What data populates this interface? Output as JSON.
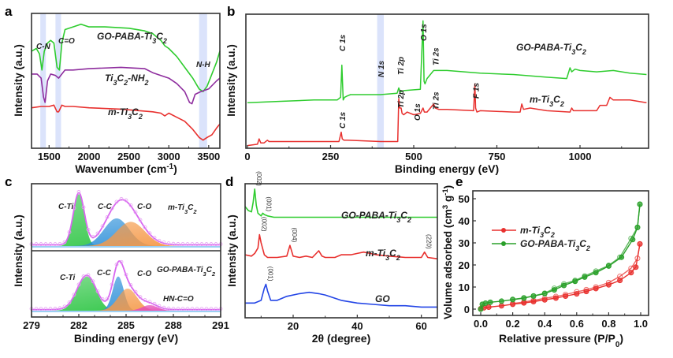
{
  "figure": {
    "title": ""
  },
  "chart_data": [
    {
      "panel": "a",
      "type": "line",
      "title": "",
      "xlabel": "Wavenumber (cm-1)",
      "ylabel": "Intensity (a.u.)",
      "xlim": [
        1280,
        3640
      ],
      "xticks": [
        1500,
        2000,
        2500,
        3000,
        3500
      ],
      "highlight_bands": [
        {
          "label": "C-N",
          "range": [
            1390,
            1460
          ]
        },
        {
          "label": "C=O",
          "range": [
            1580,
            1650
          ]
        },
        {
          "label": "N-H",
          "range": [
            3380,
            3480
          ]
        }
      ],
      "series": [
        {
          "name": "GO-PABA-Ti3C2",
          "color": "#2ecc2e",
          "x": [
            1280,
            1340,
            1380,
            1410,
            1440,
            1480,
            1520,
            1560,
            1600,
            1630,
            1660,
            1700,
            1800,
            1900,
            2000,
            2200,
            2500,
            2700,
            2800,
            2900,
            2950,
            3000,
            3100,
            3200,
            3300,
            3380,
            3430,
            3480,
            3540,
            3600,
            3640
          ],
          "y": [
            0.72,
            0.74,
            0.7,
            0.58,
            0.72,
            0.78,
            0.8,
            0.78,
            0.6,
            0.58,
            0.78,
            0.88,
            0.9,
            0.92,
            0.9,
            0.9,
            0.89,
            0.87,
            0.85,
            0.8,
            0.76,
            0.74,
            0.68,
            0.6,
            0.52,
            0.44,
            0.42,
            0.46,
            0.55,
            0.64,
            0.72
          ]
        },
        {
          "name": "Ti3C2-NH2",
          "color": "#8e2d9e",
          "x": [
            1280,
            1350,
            1400,
            1430,
            1450,
            1480,
            1520,
            1580,
            1620,
            1660,
            1700,
            1800,
            2000,
            2400,
            2700,
            2800,
            2900,
            3000,
            3100,
            3200,
            3260,
            3290,
            3330,
            3400,
            3500,
            3600,
            3640
          ],
          "y": [
            0.55,
            0.55,
            0.52,
            0.38,
            0.34,
            0.5,
            0.55,
            0.54,
            0.52,
            0.55,
            0.58,
            0.58,
            0.59,
            0.6,
            0.59,
            0.56,
            0.54,
            0.52,
            0.48,
            0.42,
            0.34,
            0.33,
            0.4,
            0.42,
            0.44,
            0.5,
            0.52
          ]
        },
        {
          "name": "m-Ti3C2",
          "color": "#e8302e",
          "x": [
            1280,
            1400,
            1500,
            1560,
            1600,
            1620,
            1660,
            1700,
            1800,
            2000,
            2400,
            2800,
            2900,
            2950,
            3000,
            3100,
            3200,
            3300,
            3380,
            3430,
            3480,
            3540,
            3600,
            3640
          ],
          "y": [
            0.3,
            0.31,
            0.31,
            0.32,
            0.27,
            0.27,
            0.32,
            0.31,
            0.31,
            0.3,
            0.29,
            0.27,
            0.26,
            0.24,
            0.26,
            0.23,
            0.2,
            0.14,
            0.08,
            0.06,
            0.08,
            0.1,
            0.15,
            0.18
          ]
        }
      ],
      "annotations": [
        "C-N",
        "C=O",
        "N-H",
        "GO-PABA-Ti3C2",
        "Ti3C2-NH2",
        "m-Ti3C2"
      ]
    },
    {
      "panel": "b",
      "type": "line",
      "title": "",
      "xlabel": "Binding energy (eV)",
      "ylabel": "Intensity (a.u.)",
      "xlim": [
        0,
        1200
      ],
      "xticks": [
        0,
        250,
        500,
        750,
        1000
      ],
      "highlight_bands": [
        {
          "label": "N 1s",
          "range": [
            390,
            410
          ]
        }
      ],
      "series": [
        {
          "name": "GO-PABA-Ti3C2",
          "color": "#2ecc2e",
          "x": [
            0,
            100,
            200,
            270,
            280,
            284,
            288,
            292,
            300,
            310,
            350,
            400,
            450,
            455,
            460,
            470,
            520,
            528,
            531,
            534,
            540,
            560,
            600,
            700,
            800,
            900,
            960,
            970,
            975,
            985,
            1000,
            1050,
            1100,
            1150,
            1200
          ],
          "y": [
            0.34,
            0.35,
            0.36,
            0.36,
            0.38,
            0.62,
            0.36,
            0.38,
            0.39,
            0.4,
            0.4,
            0.4,
            0.41,
            0.45,
            0.42,
            0.43,
            0.44,
            0.95,
            0.5,
            0.48,
            0.52,
            0.58,
            0.58,
            0.56,
            0.55,
            0.53,
            0.52,
            0.6,
            0.57,
            0.59,
            0.58,
            0.57,
            0.58,
            0.56,
            0.55
          ]
        },
        {
          "name": "m-Ti3C2",
          "color": "#e8302e",
          "x": [
            0,
            30,
            35,
            40,
            50,
            60,
            65,
            70,
            100,
            200,
            275,
            282,
            285,
            290,
            300,
            400,
            452,
            455,
            458,
            462,
            465,
            470,
            480,
            500,
            520,
            528,
            532,
            540,
            560,
            565,
            575,
            600,
            680,
            684,
            686,
            690,
            700,
            800,
            820,
            825,
            830,
            850,
            900,
            970,
            975,
            980,
            1050,
            1060,
            1080,
            1090,
            1100,
            1150,
            1200
          ],
          "y": [
            0.02,
            0.03,
            0.07,
            0.04,
            0.04,
            0.06,
            0.05,
            0.05,
            0.05,
            0.05,
            0.05,
            0.12,
            0.07,
            0.06,
            0.06,
            0.05,
            0.05,
            0.37,
            0.3,
            0.3,
            0.26,
            0.25,
            0.27,
            0.25,
            0.26,
            0.3,
            0.27,
            0.27,
            0.33,
            0.3,
            0.29,
            0.29,
            0.28,
            0.48,
            0.3,
            0.27,
            0.28,
            0.27,
            0.27,
            0.33,
            0.29,
            0.3,
            0.28,
            0.27,
            0.3,
            0.28,
            0.28,
            0.32,
            0.32,
            0.38,
            0.36,
            0.36,
            0.34
          ]
        }
      ],
      "annotations": [
        "C 1s",
        "N 1s",
        "Ti 2p",
        "O 1s",
        "Ti 2s",
        "F 1s",
        "GO-PABA-Ti3C2",
        "m-Ti3C2"
      ]
    },
    {
      "panel": "c",
      "type": "area",
      "title": "",
      "xlabel": "Binding energy (eV)",
      "ylabel": "Intensity (a.u.)",
      "xlim": [
        279,
        291
      ],
      "xticks": [
        279,
        282,
        285,
        288,
        291
      ],
      "subplots": [
        {
          "name": "m-Ti3C2",
          "components": [
            {
              "name": "C-Ti",
              "center": 282.0,
              "height": 0.9,
              "width": 0.35,
              "color": "#22c23a"
            },
            {
              "name": "C-C",
              "center": 284.4,
              "height": 0.48,
              "width": 0.8,
              "color": "#2a8ed8"
            },
            {
              "name": "C-O",
              "center": 285.3,
              "height": 0.42,
              "width": 0.9,
              "color": "#f59a4a"
            }
          ]
        },
        {
          "name": "GO-PABA-Ti3C2",
          "components": [
            {
              "name": "C-Ti",
              "center": 282.5,
              "height": 0.62,
              "width": 0.6,
              "color": "#22c23a"
            },
            {
              "name": "C-C",
              "center": 284.5,
              "height": 0.62,
              "width": 0.35,
              "color": "#2a8ed8"
            },
            {
              "name": "C-O",
              "center": 285.1,
              "height": 0.4,
              "width": 0.6,
              "color": "#f59a4a"
            },
            {
              "name": "HN-C=O",
              "center": 286.5,
              "height": 0.1,
              "width": 0.5,
              "color": "#e64bb5"
            }
          ]
        }
      ],
      "envelope_color": "#d866f0"
    },
    {
      "panel": "d",
      "type": "line",
      "title": "",
      "xlabel": "2θ (degree)",
      "ylabel": "Intensity (a.u.)",
      "xlim": [
        5,
        65
      ],
      "xticks": [
        20,
        40,
        60
      ],
      "series": [
        {
          "name": "GO-PABA-Ti3C2",
          "color": "#2ecc2e",
          "x": [
            5,
            6,
            7,
            7.5,
            8,
            8.5,
            9,
            10,
            10.5,
            11,
            12,
            14,
            20,
            30,
            40,
            50,
            60,
            65
          ],
          "y": [
            0.83,
            0.8,
            0.79,
            0.86,
            0.96,
            0.84,
            0.78,
            0.76,
            0.78,
            0.77,
            0.76,
            0.75,
            0.75,
            0.75,
            0.75,
            0.75,
            0.75,
            0.75
          ]
        },
        {
          "name": "m-Ti3C2",
          "color": "#e8302e",
          "x": [
            5,
            7,
            8,
            9,
            9.5,
            10,
            11,
            12,
            15,
            18,
            19,
            20,
            22,
            24,
            26,
            28,
            29,
            30,
            33,
            35,
            38,
            40,
            42,
            44,
            46,
            50,
            55,
            60,
            61,
            62,
            65
          ],
          "y": [
            0.47,
            0.46,
            0.48,
            0.52,
            0.62,
            0.56,
            0.47,
            0.45,
            0.45,
            0.46,
            0.54,
            0.46,
            0.45,
            0.46,
            0.45,
            0.5,
            0.46,
            0.45,
            0.45,
            0.47,
            0.47,
            0.48,
            0.49,
            0.48,
            0.47,
            0.46,
            0.45,
            0.45,
            0.49,
            0.45,
            0.44
          ]
        },
        {
          "name": "GO",
          "color": "#2345e6",
          "x": [
            5,
            8,
            10,
            11,
            11.5,
            12,
            13,
            15,
            18,
            22,
            25,
            28,
            30,
            35,
            40,
            45,
            50,
            55,
            60,
            65
          ],
          "y": [
            0.11,
            0.11,
            0.13,
            0.22,
            0.25,
            0.2,
            0.13,
            0.13,
            0.16,
            0.18,
            0.19,
            0.18,
            0.17,
            0.13,
            0.11,
            0.1,
            0.09,
            0.09,
            0.08,
            0.08
          ]
        }
      ],
      "peak_labels": [
        {
          "series": "GO-PABA-Ti3C2",
          "x": 8.0,
          "label": "(002)"
        },
        {
          "series": "GO-PABA-Ti3C2",
          "x": 11.0,
          "label": "(001)"
        },
        {
          "series": "m-Ti3C2",
          "x": 9.5,
          "label": "(002)"
        },
        {
          "series": "m-Ti3C2",
          "x": 19.0,
          "label": "(004)"
        },
        {
          "series": "m-Ti3C2",
          "x": 61.0,
          "label": "(220)"
        },
        {
          "series": "GO",
          "x": 11.5,
          "label": "(001)"
        }
      ]
    },
    {
      "panel": "e",
      "type": "scatter",
      "title": "",
      "xlabel": "Relative pressure (P/P0)",
      "ylabel": "Volume adsorbed (cm3 g-1)",
      "xlim": [
        -0.02,
        1.05
      ],
      "ylim": [
        -3,
        55
      ],
      "xticks": [
        0.0,
        0.2,
        0.4,
        0.6,
        0.8,
        1.0
      ],
      "yticks": [
        0,
        10,
        20,
        30,
        40,
        50
      ],
      "legend": "upper-left",
      "series": [
        {
          "name": "m-Ti3C2",
          "color": "#e8302e",
          "adsorption": {
            "x": [
              0.0,
              0.02,
              0.05,
              0.13,
              0.2,
              0.27,
              0.33,
              0.4,
              0.47,
              0.53,
              0.6,
              0.66,
              0.72,
              0.8,
              0.87,
              0.94,
              0.97,
              0.995
            ],
            "y": [
              0.2,
              0.6,
              0.9,
              1.5,
              2.2,
              2.8,
              3.4,
              4.2,
              5.0,
              5.9,
              6.9,
              8.0,
              9.3,
              11.0,
              13.0,
              16.5,
              19.0,
              29.5
            ]
          },
          "desorption": {
            "x": [
              0.995,
              0.98,
              0.94,
              0.87,
              0.8,
              0.72,
              0.66,
              0.6,
              0.53,
              0.47,
              0.4,
              0.33,
              0.27,
              0.2
            ],
            "y": [
              29.5,
              23.0,
              18.5,
              14.8,
              12.0,
              10.0,
              8.8,
              7.8,
              6.6,
              5.7,
              4.9,
              4.0,
              3.2,
              2.5
            ]
          }
        },
        {
          "name": "GO-PABA-Ti3C2",
          "color": "#2aa02a",
          "adsorption": {
            "x": [
              0.0,
              0.01,
              0.03,
              0.06,
              0.13,
              0.2,
              0.27,
              0.33,
              0.4,
              0.46,
              0.52,
              0.59,
              0.65,
              0.72,
              0.8,
              0.88,
              0.95,
              0.98,
              0.995
            ],
            "y": [
              0.0,
              2.2,
              2.7,
              3.1,
              3.6,
              4.3,
              5.0,
              5.9,
              7.0,
              8.7,
              10.7,
              12.6,
              14.5,
              16.5,
              19.5,
              23.5,
              31.5,
              37.0,
              47.5
            ]
          },
          "desorption": {
            "x": [
              0.995,
              0.98,
              0.94,
              0.87,
              0.8,
              0.72,
              0.65,
              0.59,
              0.52,
              0.46,
              0.4,
              0.33,
              0.27,
              0.2
            ],
            "y": [
              47.5,
              37.0,
              32.0,
              23.5,
              19.8,
              17.2,
              15.0,
              13.0,
              11.4,
              9.4,
              7.2,
              6.0,
              5.1,
              4.4
            ]
          }
        }
      ]
    }
  ],
  "labels": {
    "a": {
      "letter": "a",
      "ylabel": "Intensity (a.u.)",
      "xlabel": "Wavenumber (cm",
      "xlabel_sup": "-1",
      "xlabel_end": ")",
      "ticks": [
        "1500",
        "2000",
        "2500",
        "3000",
        "3500"
      ],
      "band_labels": [
        "C-N",
        "C=O",
        "N-H"
      ],
      "series_labels": [
        "GO-PABA-Ti3C2",
        "Ti3C2-NH2",
        "m-Ti3C2"
      ]
    },
    "b": {
      "letter": "b",
      "ylabel": "Intensity (a.u.)",
      "xlabel": "Binding energy (eV)",
      "ticks": [
        "0",
        "250",
        "500",
        "750",
        "1000"
      ],
      "peaks_top": [
        "C 1s",
        "N 1s",
        "Ti 2p",
        "O 1s",
        "Ti 2s"
      ],
      "peaks_bottom": [
        "C 1s",
        "Ti 2p",
        "O 1s",
        "Ti 2s",
        "F 1s"
      ],
      "series_labels": [
        "GO-PABA-Ti3C2",
        "m-Ti3C2"
      ],
      "n1s_color": "#e8302e"
    },
    "c": {
      "letter": "c",
      "ylabel": "Intensity (a.u.)",
      "xlabel": "Binding energy (eV)",
      "ticks": [
        "279",
        "282",
        "285",
        "288",
        "291"
      ],
      "top_labels": [
        "C-Ti",
        "C-C",
        "C-O",
        "m-Ti3C2"
      ],
      "bottom_labels": [
        "C-Ti",
        "C-C",
        "C-O",
        "GO-PABA-Ti3C2",
        "HN-C=O"
      ]
    },
    "d": {
      "letter": "d",
      "ylabel": "Intensity (a.u.)",
      "xlabel": "2θ (degree)",
      "ticks": [
        "20",
        "40",
        "60"
      ],
      "series_labels": [
        "GO-PABA-Ti3C2",
        "m-Ti3C2",
        "GO"
      ]
    },
    "e": {
      "letter": "e",
      "ylabel": "Volume adsorbed (cm3 g-1)",
      "xlabel": "Relative pressure (P/P0)",
      "xticks": [
        "0.0",
        "0.2",
        "0.4",
        "0.6",
        "0.8",
        "1.0"
      ],
      "yticks": [
        "0",
        "10",
        "20",
        "30",
        "40",
        "50"
      ],
      "legend": [
        "m-Ti3C2",
        "GO-PABA-Ti3C2"
      ]
    }
  }
}
